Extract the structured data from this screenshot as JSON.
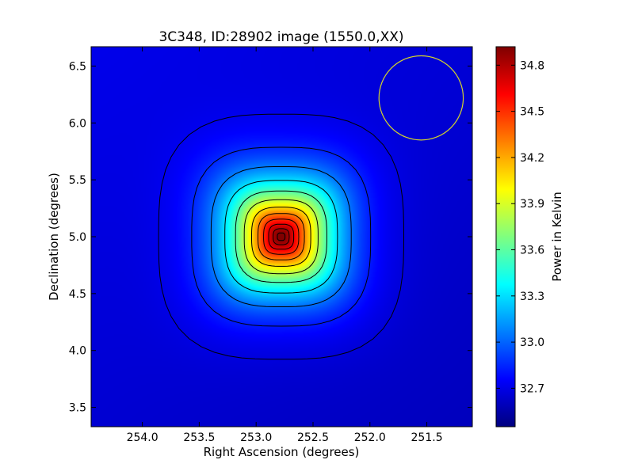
{
  "chart_data": {
    "type": "heatmap",
    "title": "3C348, ID:28902 image (1550.0,XX)",
    "xlabel": "Right Ascension (degrees)",
    "ylabel": "Declination (degrees)",
    "xlim": [
      254.45,
      251.1
    ],
    "ylim": [
      3.33,
      6.67
    ],
    "x_reversed": true,
    "x_ticks": [
      254.0,
      253.5,
      253.0,
      252.5,
      252.0,
      251.5
    ],
    "x_tick_labels": [
      "254.0",
      "253.5",
      "253.0",
      "252.5",
      "252.0",
      "251.5"
    ],
    "y_ticks": [
      3.5,
      4.0,
      4.5,
      5.0,
      5.5,
      6.0,
      6.5
    ],
    "y_tick_labels": [
      "3.5",
      "4.0",
      "4.5",
      "5.0",
      "5.5",
      "6.0",
      "6.5"
    ],
    "colorbar": {
      "label": "Power in Kelvin",
      "min": 32.45,
      "max": 34.92,
      "ticks": [
        32.7,
        33.0,
        33.3,
        33.6,
        33.9,
        34.2,
        34.5,
        34.8
      ],
      "tick_labels": [
        "32.7",
        "33.0",
        "33.3",
        "33.6",
        "33.9",
        "34.2",
        "34.5",
        "34.8"
      ],
      "colormap": "jet"
    },
    "source": {
      "name": "3C348",
      "ra": 252.78,
      "dec": 5.0,
      "peak": 34.9,
      "background": 32.6
    },
    "beam_circle": {
      "ra": 251.55,
      "dec": 6.22,
      "radius_deg": 0.37,
      "color": "#d4d42a"
    },
    "contour_color": "#000000",
    "grid": false
  }
}
